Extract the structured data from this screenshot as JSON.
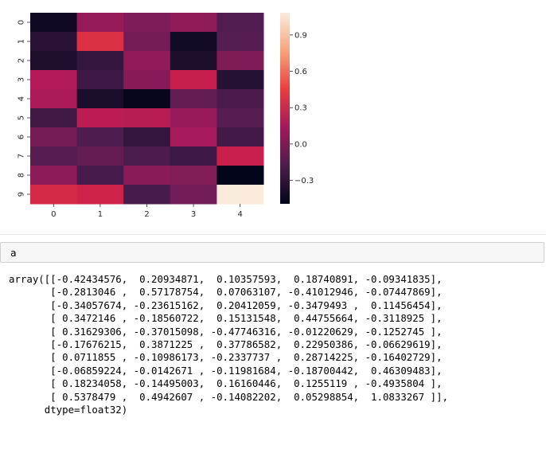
{
  "chart_data": {
    "type": "heatmap",
    "rows": [
      "0",
      "1",
      "2",
      "3",
      "4",
      "5",
      "6",
      "7",
      "8",
      "9"
    ],
    "cols": [
      "0",
      "1",
      "2",
      "3",
      "4"
    ],
    "values": [
      [
        -0.42434576,
        0.20934871,
        0.10357593,
        0.18740891,
        -0.09341835
      ],
      [
        -0.2813046,
        0.57178754,
        0.07063107,
        -0.41012946,
        -0.07447869
      ],
      [
        -0.34057674,
        -0.23615162,
        0.20412059,
        -0.3479493,
        0.11456454
      ],
      [
        0.3472146,
        -0.18560722,
        0.15131548,
        0.44755664,
        -0.3118925
      ],
      [
        0.31629306,
        -0.37015098,
        -0.47746316,
        -0.01220629,
        -0.1252745
      ],
      [
        -0.17676215,
        0.3871225,
        0.37786582,
        0.2295039,
        -0.06629619
      ],
      [
        0.0711855,
        -0.10986173,
        -0.2337737,
        0.28714225,
        -0.16402729
      ],
      [
        -0.06859224,
        -0.0142671,
        -0.11981684,
        -0.18700442,
        0.46309483
      ],
      [
        0.18234058,
        -0.14495003,
        0.16160446,
        0.1255119,
        -0.4935804
      ],
      [
        0.5378479,
        0.4942607,
        -0.14082202,
        0.05298854,
        1.0833267
      ]
    ],
    "vmin": -0.4935804,
    "vmax": 1.0833267,
    "colorbar_ticks": [
      "0.9",
      "0.6",
      "0.3",
      "0.0",
      "−0.3"
    ],
    "colorbar_tick_values": [
      0.9,
      0.6,
      0.3,
      0.0,
      -0.3
    ],
    "colormap": "rocket"
  },
  "input_cell": {
    "code": "a"
  },
  "output": {
    "text": "array([[-0.42434576,  0.20934871,  0.10357593,  0.18740891, -0.09341835],\n       [-0.2813046 ,  0.57178754,  0.07063107, -0.41012946, -0.07447869],\n       [-0.34057674, -0.23615162,  0.20412059, -0.3479493 ,  0.11456454],\n       [ 0.3472146 , -0.18560722,  0.15131548,  0.44755664, -0.3118925 ],\n       [ 0.31629306, -0.37015098, -0.47746316, -0.01220629, -0.1252745 ],\n       [-0.17676215,  0.3871225 ,  0.37786582,  0.22950386, -0.06629619],\n       [ 0.0711855 , -0.10986173, -0.2337737 ,  0.28714225, -0.16402729],\n       [-0.06859224, -0.0142671 , -0.11981684, -0.18700442,  0.46309483],\n       [ 0.18234058, -0.14495003,  0.16160446,  0.1255119 , -0.4935804 ],\n       [ 0.5378479 ,  0.4942607 , -0.14082202,  0.05298854,  1.0833267 ]],\n      dtype=float32)"
  }
}
